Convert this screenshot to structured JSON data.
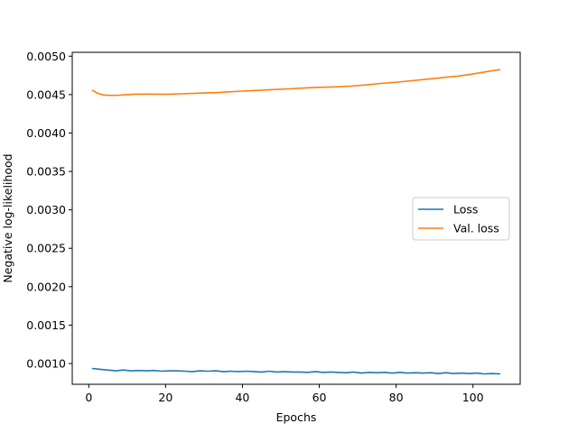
{
  "chart_data": {
    "type": "line",
    "title": "",
    "xlabel": "Epochs",
    "ylabel": "Negative log-likelihood",
    "xlim": [
      -4.3,
      112.3
    ],
    "ylim": [
      0.00073,
      0.00505
    ],
    "xticks": [
      0,
      20,
      40,
      60,
      80,
      100
    ],
    "xtick_labels": [
      "0",
      "20",
      "40",
      "60",
      "80",
      "100"
    ],
    "yticks": [
      0.001,
      0.0015,
      0.002,
      0.0025,
      0.003,
      0.0035,
      0.004,
      0.0045,
      0.005
    ],
    "ytick_labels": [
      "0.0010",
      "0.0015",
      "0.0020",
      "0.0025",
      "0.0030",
      "0.0035",
      "0.0040",
      "0.0045",
      "0.0050"
    ],
    "grid": false,
    "legend_position": "center-right",
    "series": [
      {
        "name": "Loss",
        "color": "#1f77b4",
        "x": [
          1,
          3,
          5,
          7,
          9,
          11,
          13,
          15,
          17,
          19,
          21,
          23,
          25,
          27,
          29,
          31,
          33,
          35,
          37,
          39,
          41,
          43,
          45,
          47,
          49,
          51,
          53,
          55,
          57,
          59,
          61,
          63,
          65,
          67,
          69,
          71,
          73,
          75,
          77,
          79,
          81,
          83,
          85,
          87,
          89,
          91,
          93,
          95,
          97,
          99,
          101,
          103,
          105,
          107
        ],
        "y": [
          0.000935,
          0.000925,
          0.000915,
          0.000905,
          0.000915,
          0.000905,
          0.00091,
          0.000905,
          0.00091,
          0.0009,
          0.000905,
          0.000905,
          0.0009,
          0.000895,
          0.000905,
          0.0009,
          0.000905,
          0.000895,
          0.0009,
          0.000895,
          0.0009,
          0.000895,
          0.00089,
          0.0009,
          0.00089,
          0.000895,
          0.00089,
          0.00089,
          0.000885,
          0.000895,
          0.000885,
          0.00089,
          0.000885,
          0.00088,
          0.00089,
          0.000875,
          0.000885,
          0.00088,
          0.000885,
          0.000875,
          0.000885,
          0.000875,
          0.00088,
          0.000875,
          0.00088,
          0.00087,
          0.00088,
          0.00087,
          0.000875,
          0.00087,
          0.000875,
          0.000865,
          0.00087,
          0.000865
        ]
      },
      {
        "name": "Val. loss",
        "color": "#ff7f0e",
        "x": [
          1,
          2,
          3,
          4,
          5,
          6,
          7,
          8,
          10,
          12,
          15,
          18,
          21,
          24,
          27,
          30,
          33,
          36,
          40,
          44,
          48,
          52,
          56,
          60,
          64,
          68,
          72,
          76,
          80,
          84,
          88,
          92,
          96,
          99,
          102,
          105,
          107
        ],
        "y": [
          0.004555,
          0.004525,
          0.004505,
          0.004495,
          0.00449,
          0.00449,
          0.00449,
          0.004492,
          0.0045,
          0.004505,
          0.004507,
          0.004505,
          0.004505,
          0.00451,
          0.004515,
          0.00452,
          0.004525,
          0.004535,
          0.004545,
          0.004555,
          0.004565,
          0.004575,
          0.004585,
          0.004595,
          0.0046,
          0.00461,
          0.004625,
          0.004645,
          0.00466,
          0.00468,
          0.0047,
          0.00472,
          0.00474,
          0.00476,
          0.004785,
          0.00481,
          0.004825
        ]
      }
    ]
  }
}
